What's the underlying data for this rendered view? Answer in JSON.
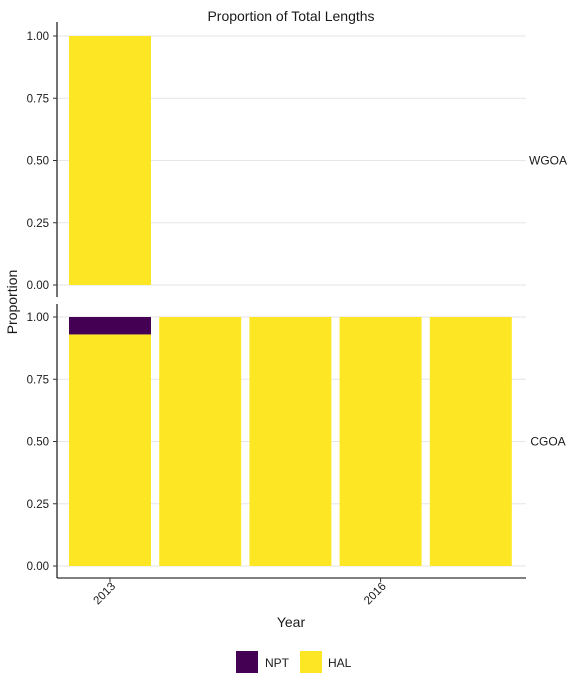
{
  "chart_data": {
    "type": "bar",
    "stacked": true,
    "title": "Proportion of Total Lengths",
    "xlabel": "Year",
    "ylabel": "Proportion",
    "x_tick_labels": [
      "2013",
      "2016"
    ],
    "x_tick_years": [
      2013,
      2016
    ],
    "years": [
      2013,
      2014,
      2015,
      2016,
      2017
    ],
    "ylim": [
      0,
      1
    ],
    "yticks": [
      "0.00",
      "0.25",
      "0.50",
      "0.75",
      "1.00"
    ],
    "grid": true,
    "legend_position": "bottom",
    "series": [
      {
        "name": "NPT",
        "color": "#440154"
      },
      {
        "name": "HAL",
        "color": "#FDE725"
      }
    ],
    "facets": [
      {
        "label": "WGOA",
        "bars": [
          {
            "year": 2013,
            "NPT": 0.0,
            "HAL": 1.0
          }
        ]
      },
      {
        "label": "CGOA",
        "bars": [
          {
            "year": 2013,
            "NPT": 0.07,
            "HAL": 0.93
          },
          {
            "year": 2014,
            "NPT": 0.0,
            "HAL": 1.0
          },
          {
            "year": 2015,
            "NPT": 0.0,
            "HAL": 1.0
          },
          {
            "year": 2016,
            "NPT": 0.0,
            "HAL": 1.0
          },
          {
            "year": 2017,
            "NPT": 0.0,
            "HAL": 1.0
          }
        ]
      }
    ]
  }
}
